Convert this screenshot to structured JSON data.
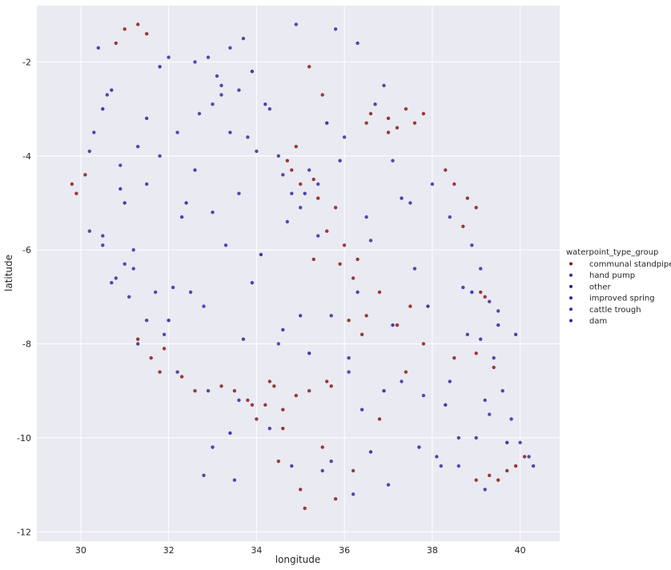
{
  "chart_data": {
    "type": "scatter",
    "title": "",
    "xlabel": "longitude",
    "ylabel": "latitude",
    "xlim": [
      29.0,
      40.9
    ],
    "ylim": [
      -12.2,
      -0.8
    ],
    "x_ticks": [
      30,
      32,
      34,
      36,
      38,
      40
    ],
    "y_ticks": [
      -2,
      -4,
      -6,
      -8,
      -10,
      -12
    ],
    "grid": true,
    "legend": {
      "title": "waterpoint_type_group",
      "placement": "right",
      "entries": [
        "communal standpipe",
        "hand pump",
        "other",
        "improved spring",
        "cattle trough",
        "dam"
      ]
    },
    "colors": {
      "communal standpipe": "#8b1a1a",
      "hand pump": "#3a2a9e",
      "other": "#2a1aa0",
      "improved spring": "#2e23a8",
      "cattle trough": "#3a2fb0",
      "dam": "#3325a8",
      "panel": "#eaeaf2",
      "grid": "#ffffff"
    },
    "series": [
      {
        "name": "communal standpipe",
        "x": [
          29.9,
          29.8,
          30.1,
          31.0,
          30.8,
          31.3,
          31.5,
          36.5,
          36.6,
          37.0,
          37.2,
          37.4,
          37.6,
          37.8,
          37.0,
          38.3,
          38.5,
          38.8,
          39.0,
          38.7,
          39.1,
          34.8,
          35.0,
          35.4,
          35.8,
          35.6,
          36.0,
          35.3,
          35.9,
          36.3,
          36.2,
          36.8,
          36.5,
          37.2,
          37.5,
          37.8,
          38.5,
          39.0,
          39.2,
          39.4,
          33.5,
          33.8,
          34.2,
          34.6,
          34.9,
          35.2,
          34.4,
          34.0,
          33.9,
          34.6,
          35.5,
          35.0,
          35.8,
          36.2,
          35.1,
          39.0,
          39.3,
          39.7,
          39.9,
          40.1,
          39.5,
          31.3,
          31.6,
          31.9,
          35.2,
          35.5,
          31.8,
          35.6,
          36.8,
          34.3,
          33.2,
          34.9,
          35.3,
          34.7,
          32.3,
          32.6,
          34.5,
          35.7,
          36.4,
          37.4,
          36.1
        ],
        "y": [
          -4.8,
          -4.6,
          -4.4,
          -1.3,
          -1.6,
          -1.2,
          -1.4,
          -3.3,
          -3.1,
          -3.2,
          -3.4,
          -3.0,
          -3.3,
          -3.1,
          -3.5,
          -4.3,
          -4.6,
          -4.9,
          -5.1,
          -5.5,
          -6.9,
          -4.3,
          -4.6,
          -4.9,
          -5.1,
          -5.6,
          -5.9,
          -6.2,
          -6.3,
          -6.2,
          -6.6,
          -6.9,
          -7.4,
          -7.6,
          -7.2,
          -8.0,
          -8.3,
          -8.2,
          -7.0,
          -8.5,
          -9.0,
          -9.2,
          -9.3,
          -9.4,
          -9.1,
          -9.0,
          -8.9,
          -9.6,
          -9.3,
          -9.8,
          -10.2,
          -11.1,
          -11.3,
          -10.7,
          -11.5,
          -10.9,
          -10.8,
          -10.7,
          -10.6,
          -10.4,
          -10.9,
          -7.9,
          -8.3,
          -8.1,
          -2.1,
          -2.7,
          -8.6,
          -8.8,
          -9.6,
          -8.8,
          -8.9,
          -3.8,
          -4.5,
          -4.1,
          -8.7,
          -9.0,
          -10.5,
          -8.9,
          -7.8,
          -8.6,
          -7.5
        ]
      },
      {
        "name": "hand pump",
        "x": [
          30.2,
          30.5,
          30.7,
          31.0,
          31.2,
          31.7,
          32.1,
          32.5,
          33.0,
          33.3,
          33.6,
          33.8,
          34.0,
          34.3,
          33.2,
          32.7,
          32.2,
          31.8,
          31.3,
          31.5,
          34.6,
          34.8,
          35.0,
          35.2,
          34.7,
          35.4,
          34.5,
          33.6,
          33.2,
          33.0,
          32.9,
          33.4,
          33.7,
          32.6,
          35.8,
          36.3,
          36.7,
          37.1,
          37.5,
          38.0,
          38.4,
          38.9,
          39.1,
          39.3,
          39.5,
          38.8,
          39.4,
          39.6,
          39.8,
          40.0,
          40.2,
          40.3,
          39.0,
          38.2,
          37.0,
          36.2,
          35.7,
          35.5,
          34.8,
          34.3,
          33.6,
          32.9,
          32.2,
          31.9,
          31.5,
          31.1,
          30.8,
          30.5,
          30.9,
          30.3,
          30.6,
          34.9,
          36.9,
          36.6,
          35.7,
          37.6,
          38.7,
          39.1,
          37.3,
          36.1,
          32.8,
          33.5,
          30.4,
          32.0,
          36.0,
          36.5,
          33.1,
          30.2,
          39.2,
          38.6,
          38.1
        ],
        "y": [
          -5.6,
          -5.7,
          -6.7,
          -6.3,
          -6.4,
          -6.9,
          -6.8,
          -6.9,
          -5.2,
          -5.9,
          -4.8,
          -3.6,
          -3.9,
          -3.0,
          -2.7,
          -3.1,
          -3.5,
          -4.0,
          -3.8,
          -4.6,
          -4.4,
          -4.8,
          -5.1,
          -4.3,
          -5.4,
          -4.6,
          -4.0,
          -2.6,
          -2.5,
          -2.9,
          -1.9,
          -1.7,
          -1.5,
          -2.0,
          -1.3,
          -1.6,
          -2.9,
          -4.1,
          -5.0,
          -4.6,
          -5.3,
          -5.9,
          -6.4,
          -7.1,
          -7.3,
          -7.8,
          -8.3,
          -9.0,
          -9.6,
          -10.1,
          -10.4,
          -10.6,
          -10.0,
          -10.6,
          -11.0,
          -11.2,
          -10.5,
          -10.7,
          -10.6,
          -9.8,
          -9.2,
          -9.0,
          -8.6,
          -7.8,
          -7.5,
          -7.0,
          -6.6,
          -5.9,
          -4.2,
          -3.5,
          -2.7,
          -1.2,
          -2.5,
          -5.8,
          -7.4,
          -6.4,
          -6.8,
          -7.9,
          -8.8,
          -8.3,
          -10.8,
          -10.9,
          -1.7,
          -1.9,
          -3.6,
          -5.3,
          -2.3,
          -3.9,
          -9.2,
          -10.0,
          -10.4
        ]
      },
      {
        "name": "other",
        "x": [
          30.5,
          31.8,
          32.4,
          33.9,
          35.6,
          37.9,
          38.3,
          39.7,
          36.9,
          34.1,
          32.0,
          31.0,
          33.4,
          36.6,
          38.9,
          35.2
        ],
        "y": [
          -3.0,
          -2.1,
          -5.0,
          -2.2,
          -3.3,
          -7.2,
          -9.3,
          -10.1,
          -9.0,
          -6.1,
          -7.5,
          -5.0,
          -9.9,
          -10.3,
          -6.9,
          -8.2
        ]
      },
      {
        "name": "improved spring",
        "x": [
          30.7,
          31.5,
          32.6,
          33.4,
          34.2,
          35.1,
          36.3,
          37.1,
          38.4,
          39.5,
          31.3,
          33.0,
          34.6,
          35.9,
          37.3,
          39.9
        ],
        "y": [
          -2.6,
          -3.2,
          -4.3,
          -3.5,
          -2.9,
          -4.8,
          -6.9,
          -7.6,
          -8.8,
          -7.6,
          -8.0,
          -10.2,
          -7.7,
          -4.1,
          -4.9,
          -7.8
        ]
      },
      {
        "name": "cattle trough",
        "x": [
          31.2,
          32.8,
          34.5,
          36.1,
          37.8,
          38.6,
          39.3,
          35.4
        ],
        "y": [
          -6.0,
          -7.2,
          -8.0,
          -8.6,
          -9.1,
          -10.6,
          -9.5,
          -5.7
        ]
      },
      {
        "name": "dam",
        "x": [
          30.9,
          32.3,
          33.7,
          35.0,
          36.4,
          37.7,
          39.2,
          33.9
        ],
        "y": [
          -4.7,
          -5.3,
          -7.9,
          -7.4,
          -9.4,
          -10.2,
          -11.1,
          -6.7
        ]
      }
    ]
  }
}
